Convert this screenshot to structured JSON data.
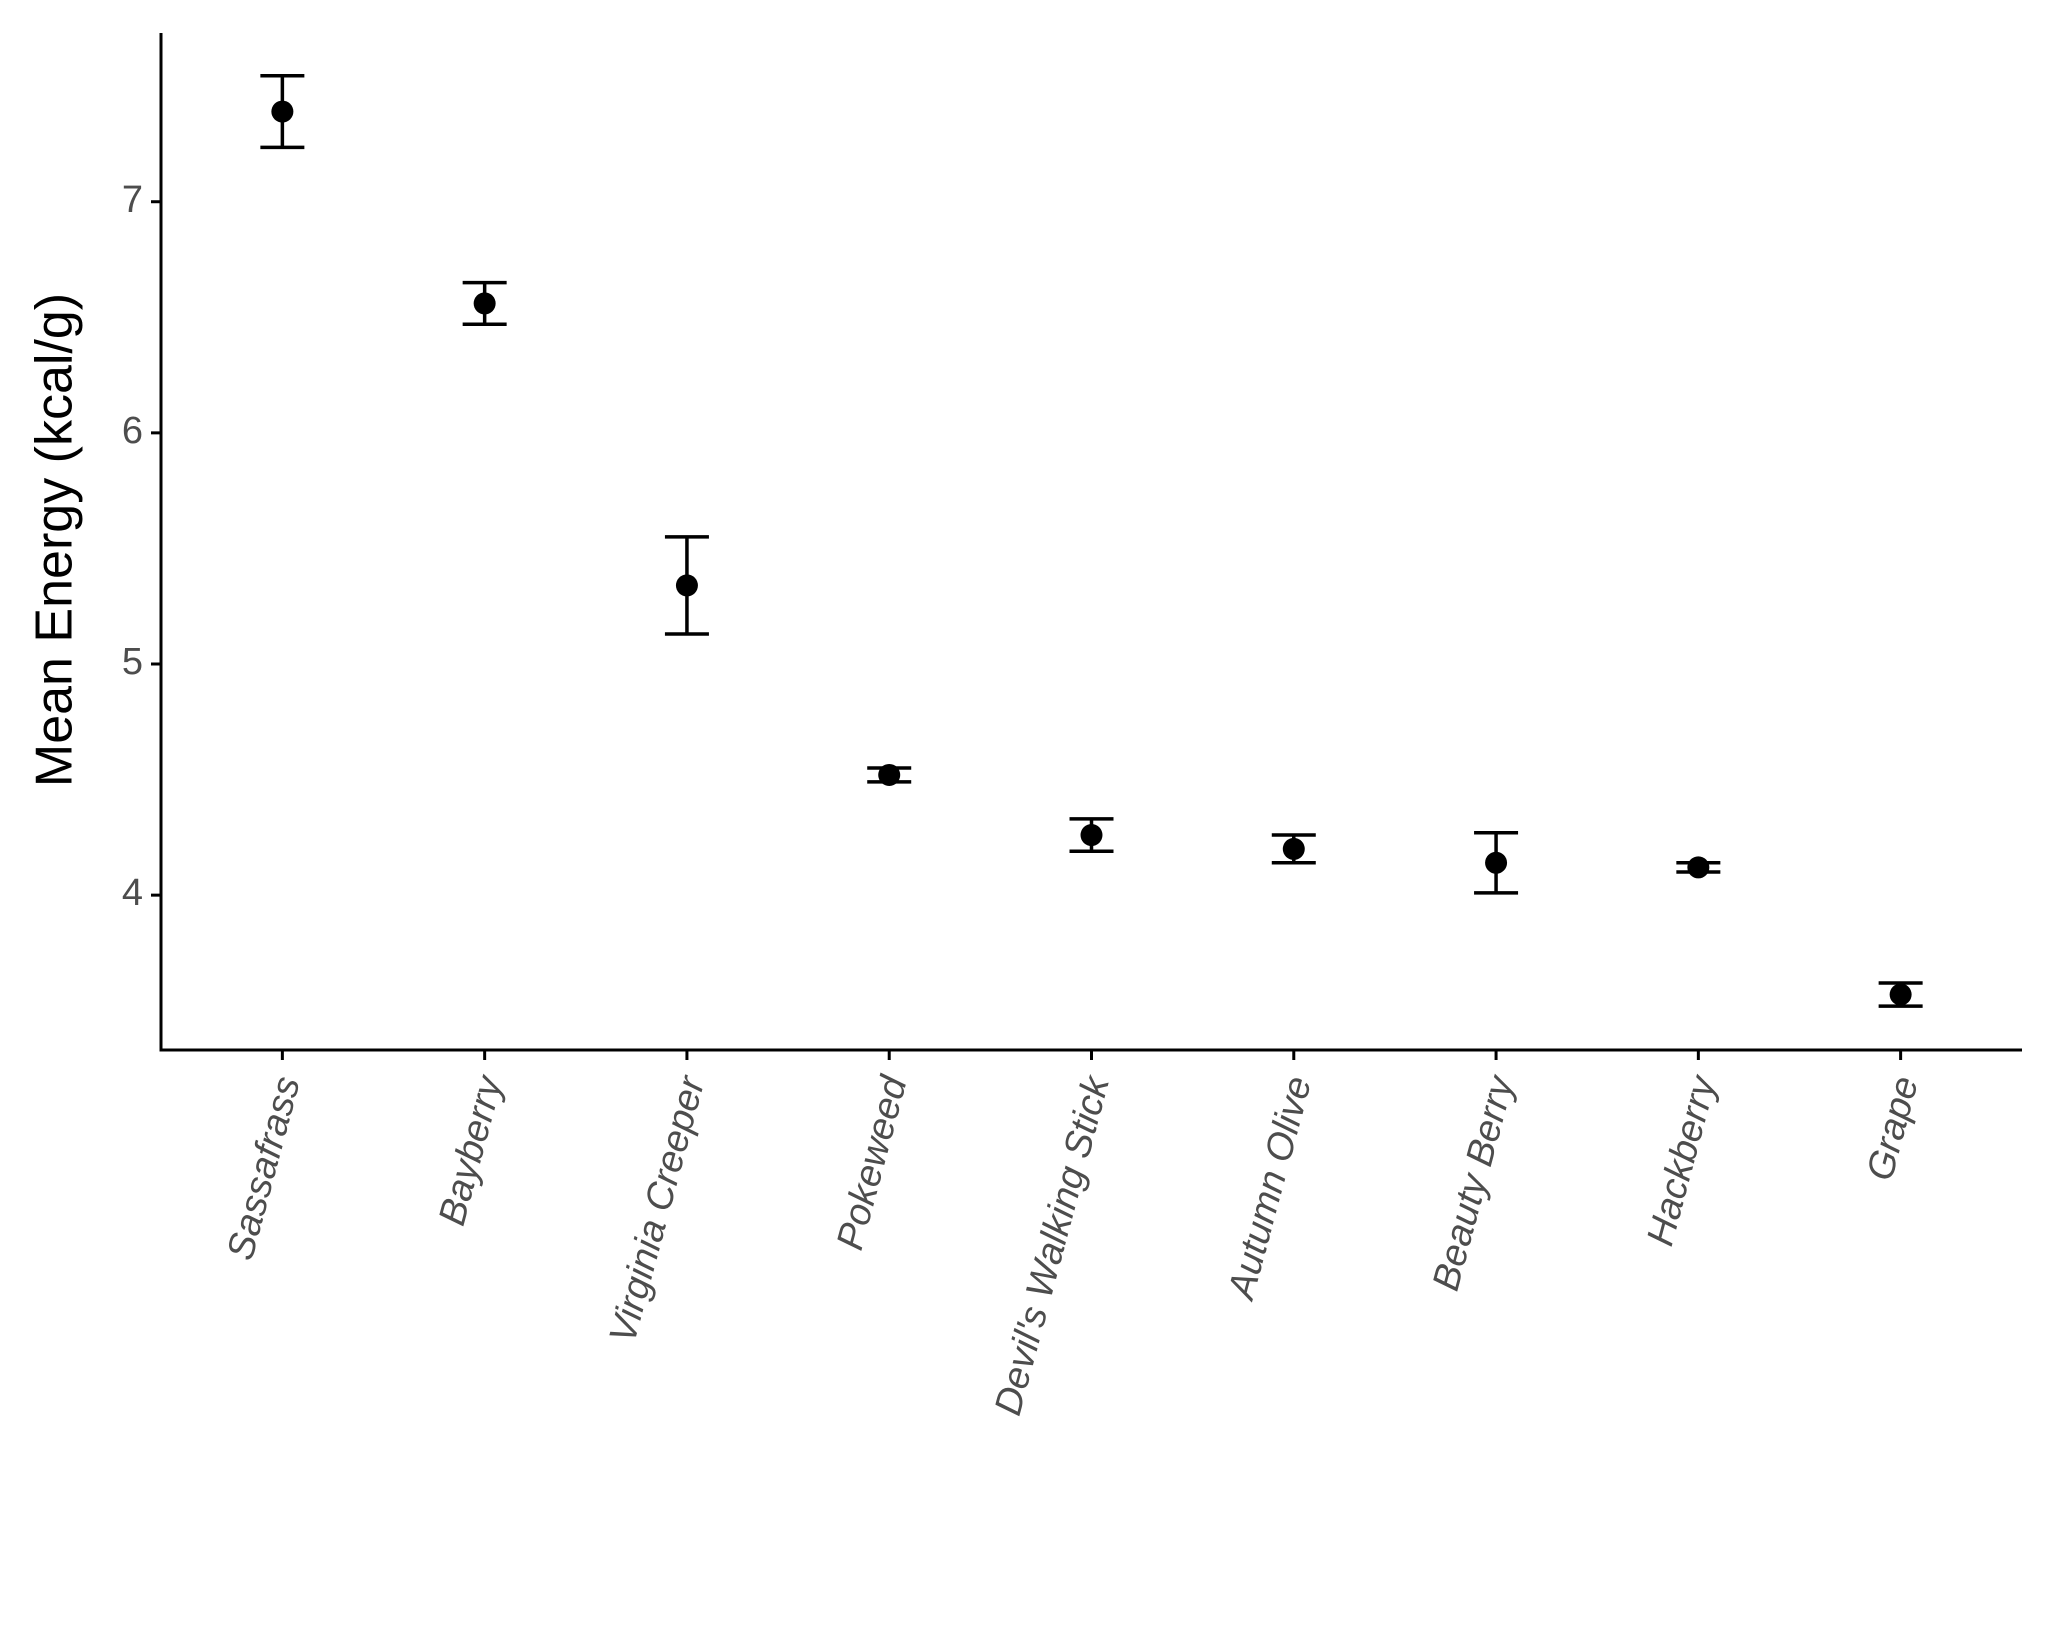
{
  "chart_data": {
    "type": "errorbar",
    "y_label": "Mean Energy (kcal/g)",
    "categories": [
      "Sassafrass",
      "Bayberry",
      "Virginia Creeper",
      "Pokeweed",
      "Devil's Walking Stick",
      "Autumn Olive",
      "Beauty Berry",
      "Hackberry",
      "Grape"
    ],
    "values": [
      7.39,
      6.56,
      5.34,
      4.52,
      4.26,
      4.2,
      4.14,
      4.12,
      3.57
    ],
    "errors": [
      0.155,
      0.09,
      0.21,
      0.03,
      0.07,
      0.06,
      0.13,
      0.02,
      0.05
    ],
    "color": "#000000",
    "ylim": [
      3.33,
      7.73
    ],
    "yticks": [
      4,
      5,
      6,
      7
    ],
    "grid": false
  }
}
